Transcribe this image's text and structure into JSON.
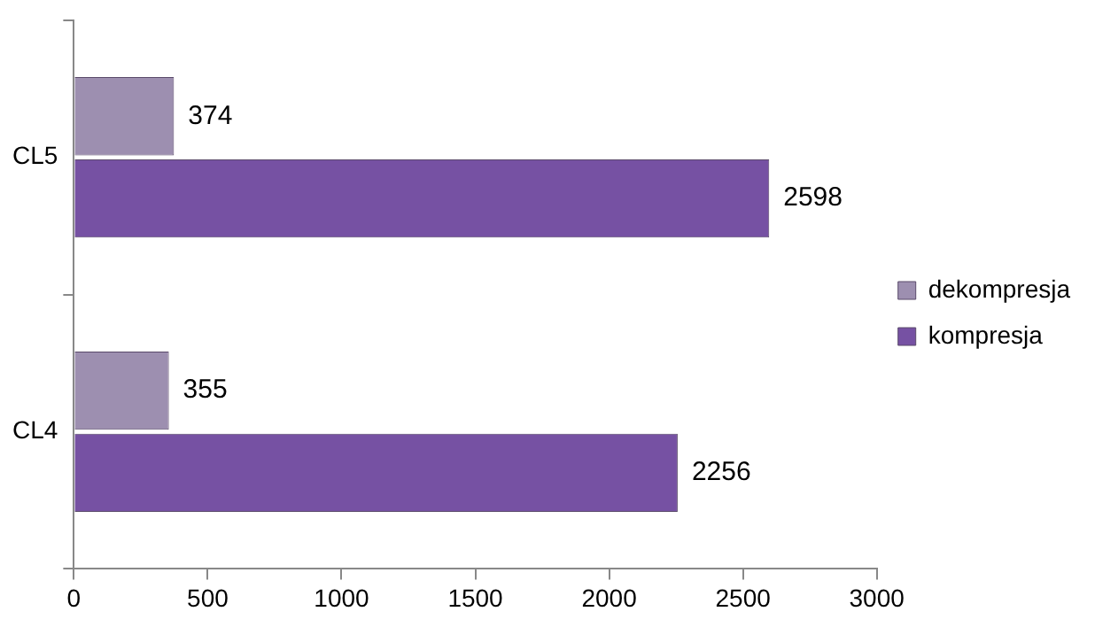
{
  "chart_data": {
    "type": "bar",
    "orientation": "horizontal",
    "categories": [
      "CL5",
      "CL4"
    ],
    "series": [
      {
        "name": "dekompresja",
        "color": "#9d8fb0",
        "values": [
          374,
          355
        ]
      },
      {
        "name": "kompresja",
        "color": "#7651a3",
        "values": [
          2598,
          2256
        ]
      }
    ],
    "xlim": [
      0,
      3000
    ],
    "xticks": [
      0,
      500,
      1000,
      1500,
      2000,
      2500,
      3000
    ],
    "grid": false,
    "legend": "right",
    "data_labels": true
  }
}
